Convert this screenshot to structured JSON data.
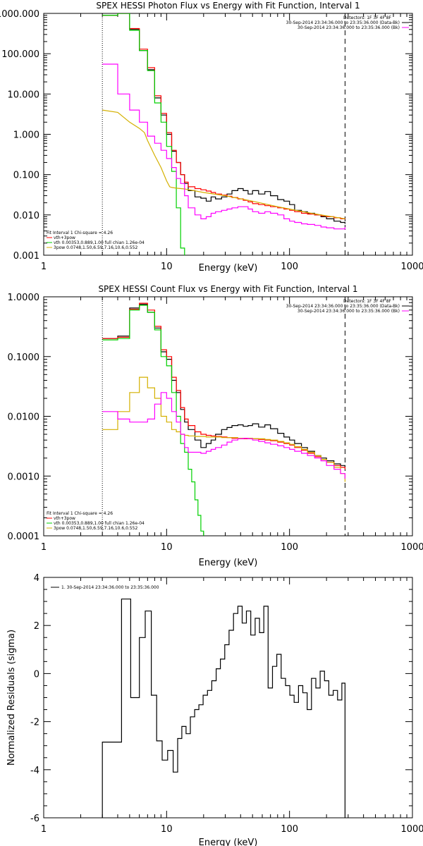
{
  "chart_data": [
    {
      "type": "line",
      "title": "SPEX HESSI Photon Flux vs Energy with Fit Function, Interval 1",
      "xlabel": "Energy (keV)",
      "ylabel": "",
      "xscale": "log",
      "yscale": "log",
      "xlim": [
        1,
        1000
      ],
      "ylim": [
        0.001,
        1000
      ],
      "xticks": [
        1,
        10,
        100,
        1000
      ],
      "xtick_labels": [
        "1",
        "10",
        "100",
        "1000"
      ],
      "yticks": [
        0.001,
        0.01,
        0.1,
        1,
        10,
        100,
        1000
      ],
      "ytick_labels": [
        "0.001",
        "0.010",
        "0.100",
        "1.000",
        "10.000",
        "100.000",
        "1000.000"
      ],
      "header_right": [
        "Detectors: 1F 3F 4F 8F",
        "30-Sep-2014 23:34:36.000 to 23:35:36.000 (Data-Bk)",
        "30-Sep-2014 23:34:36.000 to 23:35:36.000 (Bk)"
      ],
      "legend_text": [
        "Fit Interval 1   Chi-square = 4.26",
        "vth+3pow",
        "vth 0.00353,0.889,1.00  full chian 1.26e-04",
        "3pow 0.0748,1.50,6.59,7.16,10.6,0.552"
      ],
      "legend_position": "bottom-left",
      "vlines": [
        {
          "x": 3,
          "style": "dotted",
          "color": "#000000"
        },
        {
          "x": 283,
          "style": "dashed",
          "color": "#000000"
        }
      ],
      "series": [
        {
          "name": "30-Sep-2014 23:34:36.000 to 23:35:36.000 (Data-Bk)",
          "color": "#000000",
          "step": true,
          "x": [
            3,
            4,
            5,
            6,
            7,
            8,
            9,
            10,
            11,
            12,
            13,
            14,
            15,
            17,
            19,
            21,
            23,
            25,
            28,
            31,
            34,
            38,
            42,
            46,
            50,
            56,
            63,
            70,
            80,
            90,
            100,
            110,
            125,
            140,
            160,
            180,
            200,
            230,
            260,
            283
          ],
          "y": [
            900,
            1000,
            400,
            120,
            40,
            8,
            3,
            1,
            0.38,
            0.2,
            0.1,
            0.06,
            0.04,
            0.028,
            0.026,
            0.022,
            0.028,
            0.025,
            0.028,
            0.033,
            0.04,
            0.045,
            0.04,
            0.033,
            0.04,
            0.033,
            0.038,
            0.03,
            0.024,
            0.022,
            0.018,
            0.013,
            0.012,
            0.011,
            0.01,
            0.009,
            0.008,
            0.007,
            0.0065,
            0.006
          ]
        },
        {
          "name": "vth+3pow",
          "color": "#ff0000",
          "step": true,
          "x": [
            3,
            4,
            5,
            6,
            7,
            8,
            9,
            10,
            11,
            12,
            13,
            14,
            15,
            17,
            19,
            21,
            23,
            25,
            28,
            31,
            34,
            38,
            42,
            46,
            50,
            56,
            63,
            70,
            80,
            90,
            100,
            110,
            125,
            140,
            160,
            180,
            200,
            230,
            260,
            283
          ],
          "y": [
            900,
            1000,
            420,
            130,
            45,
            9,
            3.3,
            1.1,
            0.4,
            0.2,
            0.1,
            0.065,
            0.05,
            0.045,
            0.042,
            0.039,
            0.036,
            0.033,
            0.031,
            0.029,
            0.027,
            0.025,
            0.023,
            0.021,
            0.019,
            0.018,
            0.017,
            0.016,
            0.015,
            0.014,
            0.013,
            0.012,
            0.011,
            0.0105,
            0.01,
            0.0095,
            0.009,
            0.0085,
            0.008,
            0.0078
          ]
        },
        {
          "name": "vth 0.00353,0.889,1.00  full chian 1.26e-04",
          "color": "#00d000",
          "step": true,
          "x": [
            3,
            4,
            5,
            6,
            7,
            8,
            9,
            10,
            11,
            12,
            13,
            14
          ],
          "y": [
            900,
            1000,
            380,
            120,
            38,
            6,
            2,
            0.5,
            0.12,
            0.015,
            0.0015,
            0.001
          ]
        },
        {
          "name": "3pow 0.0748,1.50,6.59,7.16,10.6,0.552",
          "color": "#d4b000",
          "step": false,
          "x": [
            3,
            4,
            5,
            6,
            6.6,
            7,
            8,
            9,
            10,
            10.6,
            11,
            12,
            14,
            20,
            30,
            50,
            80,
            100,
            150,
            200,
            283
          ],
          "y": [
            4,
            3.5,
            2,
            1.4,
            1.1,
            0.7,
            0.3,
            0.15,
            0.07,
            0.05,
            0.048,
            0.046,
            0.044,
            0.036,
            0.03,
            0.022,
            0.016,
            0.014,
            0.011,
            0.0095,
            0.008
          ]
        },
        {
          "name": "30-Sep-2014 23:34:36.000 to 23:35:36.000 (Bk)",
          "color": "#ff00ff",
          "step": true,
          "x": [
            3,
            4,
            5,
            6,
            7,
            8,
            9,
            10,
            11,
            12,
            13,
            14,
            15,
            17,
            19,
            21,
            23,
            25,
            28,
            31,
            34,
            38,
            42,
            46,
            50,
            56,
            63,
            70,
            80,
            90,
            100,
            110,
            125,
            140,
            160,
            180,
            200,
            230,
            260,
            283
          ],
          "y": [
            55,
            10,
            4,
            2,
            0.9,
            0.6,
            0.4,
            0.25,
            0.15,
            0.08,
            0.06,
            0.03,
            0.015,
            0.01,
            0.008,
            0.009,
            0.011,
            0.012,
            0.013,
            0.014,
            0.015,
            0.016,
            0.016,
            0.014,
            0.012,
            0.011,
            0.012,
            0.011,
            0.01,
            0.008,
            0.007,
            0.0065,
            0.006,
            0.0058,
            0.0055,
            0.005,
            0.0048,
            0.0045,
            0.0045,
            0.005
          ]
        }
      ]
    },
    {
      "type": "line",
      "title": "SPEX HESSI Count Flux vs Energy with Fit Function, Interval 1",
      "xlabel": "Energy (keV)",
      "ylabel": "",
      "xscale": "log",
      "yscale": "log",
      "xlim": [
        1,
        1000
      ],
      "ylim": [
        0.0001,
        1
      ],
      "xticks": [
        1,
        10,
        100,
        1000
      ],
      "xtick_labels": [
        "1",
        "10",
        "100",
        "1000"
      ],
      "yticks": [
        0.0001,
        0.001,
        0.01,
        0.1,
        1
      ],
      "ytick_labels": [
        "0.0001",
        "0.0010",
        "0.0100",
        "0.1000",
        "1.0000"
      ],
      "header_right": [
        "Detectors: 1F 3F 4F 8F",
        "30-Sep-2014 23:34:36.000 to 23:35:36.000 (Data-Bk)",
        "30-Sep-2014 23:34:36.000 to 23:35:36.000 (Bk)"
      ],
      "legend_text": [
        "Fit Interval 1   Chi-square = 4.26",
        "vth+3pow",
        "vth 0.00353,0.889,1.00  full chian 1.26e-04",
        "3pow 0.0748,1.50,6.59,7.16,10.6,0.552"
      ],
      "legend_position": "bottom-left",
      "vlines": [
        {
          "x": 3,
          "style": "dotted",
          "color": "#000000"
        },
        {
          "x": 283,
          "style": "dashed",
          "color": "#000000"
        }
      ],
      "series": [
        {
          "name": "30-Sep-2014 23:34:36.000 to 23:35:36.000 (Data-Bk)",
          "color": "#000000",
          "step": true,
          "x": [
            3,
            4,
            5,
            6,
            7,
            8,
            9,
            10,
            11,
            12,
            13,
            14,
            15,
            17,
            19,
            21,
            23,
            25,
            28,
            31,
            34,
            38,
            42,
            46,
            50,
            56,
            63,
            70,
            80,
            90,
            100,
            110,
            125,
            140,
            160,
            180,
            200,
            230,
            260,
            283
          ],
          "y": [
            0.2,
            0.22,
            0.65,
            0.75,
            0.55,
            0.3,
            0.12,
            0.09,
            0.04,
            0.025,
            0.013,
            0.008,
            0.006,
            0.004,
            0.003,
            0.0035,
            0.004,
            0.005,
            0.006,
            0.0065,
            0.007,
            0.0072,
            0.0068,
            0.007,
            0.0075,
            0.0066,
            0.0072,
            0.0062,
            0.0052,
            0.0045,
            0.004,
            0.0035,
            0.003,
            0.0026,
            0.0022,
            0.002,
            0.0018,
            0.0016,
            0.0015,
            0.0014
          ]
        },
        {
          "name": "vth+3pow",
          "color": "#ff0000",
          "step": true,
          "x": [
            3,
            4,
            5,
            6,
            7,
            8,
            9,
            10,
            11,
            12,
            13,
            14,
            15,
            17,
            19,
            21,
            23,
            25,
            28,
            31,
            34,
            38,
            42,
            46,
            50,
            56,
            63,
            70,
            80,
            90,
            100,
            110,
            125,
            140,
            160,
            180,
            200,
            230,
            260,
            283
          ],
          "y": [
            0.2,
            0.21,
            0.62,
            0.78,
            0.6,
            0.32,
            0.13,
            0.1,
            0.045,
            0.027,
            0.014,
            0.009,
            0.007,
            0.0055,
            0.005,
            0.0048,
            0.0047,
            0.0046,
            0.0045,
            0.0044,
            0.0043,
            0.0043,
            0.0042,
            0.0042,
            0.0042,
            0.0041,
            0.004,
            0.0039,
            0.0037,
            0.0035,
            0.0033,
            0.003,
            0.0027,
            0.0024,
            0.0021,
            0.0019,
            0.0017,
            0.0015,
            0.0014,
            0.0013
          ]
        },
        {
          "name": "vth 0.00353,0.889,1.00  full chian 1.26e-04",
          "color": "#00d000",
          "step": true,
          "x": [
            3,
            4,
            5,
            6,
            7,
            8,
            9,
            10,
            11,
            12,
            13,
            14,
            15,
            16,
            17,
            18,
            19,
            20
          ],
          "y": [
            0.19,
            0.2,
            0.6,
            0.72,
            0.55,
            0.28,
            0.1,
            0.07,
            0.025,
            0.01,
            0.0035,
            0.0025,
            0.0013,
            0.0008,
            0.0004,
            0.00022,
            0.00012,
            0.0001
          ]
        },
        {
          "name": "3pow 0.0748,1.50,6.59,7.16,10.6,0.552",
          "color": "#d4b000",
          "step": true,
          "x": [
            3,
            4,
            5,
            6,
            7,
            8,
            9,
            10,
            11,
            12,
            13,
            14,
            15,
            17,
            19,
            21,
            23,
            25,
            28,
            31,
            34,
            38,
            42,
            46,
            50,
            56,
            63,
            70,
            80,
            90,
            100,
            110,
            125,
            140,
            160,
            180,
            200,
            230,
            260,
            283
          ],
          "y": [
            0.006,
            0.012,
            0.025,
            0.045,
            0.03,
            0.02,
            0.01,
            0.008,
            0.006,
            0.0055,
            0.005,
            0.0048,
            0.0047,
            0.0046,
            0.0046,
            0.0045,
            0.0045,
            0.0045,
            0.0044,
            0.0044,
            0.0044,
            0.0043,
            0.0043,
            0.0043,
            0.0042,
            0.0042,
            0.0041,
            0.004,
            0.0038,
            0.0036,
            0.0034,
            0.0031,
            0.0028,
            0.0025,
            0.0022,
            0.0019,
            0.0017,
            0.0014,
            0.0011,
            0.0008
          ]
        },
        {
          "name": "30-Sep-2014 23:34:36.000 to 23:35:36.000 (Bk)",
          "color": "#ff00ff",
          "step": true,
          "x": [
            3,
            4,
            5,
            6,
            7,
            8,
            9,
            10,
            11,
            12,
            13,
            14,
            15,
            17,
            19,
            21,
            23,
            25,
            28,
            31,
            34,
            38,
            42,
            46,
            50,
            56,
            63,
            70,
            80,
            90,
            100,
            110,
            125,
            140,
            160,
            180,
            200,
            230,
            260,
            283
          ],
          "y": [
            0.012,
            0.009,
            0.008,
            0.008,
            0.009,
            0.016,
            0.025,
            0.02,
            0.012,
            0.008,
            0.005,
            0.003,
            0.0025,
            0.0025,
            0.0024,
            0.0026,
            0.0028,
            0.003,
            0.0033,
            0.0037,
            0.004,
            0.0042,
            0.0043,
            0.0042,
            0.004,
            0.0038,
            0.0036,
            0.0034,
            0.0032,
            0.003,
            0.0028,
            0.0026,
            0.0024,
            0.0022,
            0.002,
            0.0018,
            0.0015,
            0.0013,
            0.0011,
            0.0009
          ]
        }
      ]
    },
    {
      "type": "line",
      "title": "",
      "xlabel": "Energy (keV)",
      "ylabel": "Normalized Residuals (sigma)",
      "xscale": "log",
      "yscale": "linear",
      "xlim": [
        1,
        1000
      ],
      "ylim": [
        -6,
        4
      ],
      "xticks": [
        1,
        10,
        100,
        1000
      ],
      "xtick_labels": [
        "1",
        "10",
        "100",
        "1000"
      ],
      "yticks": [
        -6,
        -4,
        -2,
        0,
        2,
        4
      ],
      "ytick_labels": [
        "-6",
        "-4",
        "-2",
        "0",
        "2",
        "4"
      ],
      "legend_text": [
        "1. 30-Sep-2014 23:34:36.000 to 23:35:36.000"
      ],
      "legend_position": "top-left",
      "series": [
        {
          "name": "1. 30-Sep-2014 23:34:36.000 to 23:35:36.000",
          "color": "#000000",
          "step": true,
          "x": [
            3,
            4.3,
            5.1,
            6,
            6.7,
            7.5,
            8.3,
            9.2,
            10.2,
            11.3,
            12.3,
            13.3,
            14.4,
            15.6,
            16.9,
            18.3,
            19.8,
            21.5,
            23.3,
            25.3,
            27.4,
            29.7,
            32.2,
            35,
            38,
            41.2,
            44.6,
            48.4,
            52.5,
            57,
            61.8,
            67,
            72.7,
            78.8,
            85.5,
            92.8,
            100.6,
            109,
            118.3,
            128.3,
            139.1,
            150.9,
            163.7,
            177.5,
            192.6,
            208.9,
            226.6,
            245.8,
            266.6,
            283
          ],
          "y": [
            -2.85,
            3.1,
            -1.0,
            1.5,
            2.6,
            -0.9,
            -2.8,
            -3.6,
            -3.2,
            -4.1,
            -2.7,
            -2.2,
            -2.5,
            -1.8,
            -1.5,
            -1.3,
            -0.9,
            -0.7,
            -0.3,
            0.2,
            0.6,
            1.2,
            1.8,
            2.5,
            2.8,
            2.1,
            2.6,
            1.6,
            2.3,
            1.7,
            2.8,
            -0.6,
            0.3,
            0.8,
            -0.2,
            -0.5,
            -0.9,
            -1.2,
            -0.5,
            -0.8,
            -1.5,
            -0.2,
            -0.6,
            0.1,
            -0.3,
            -0.9,
            -0.7,
            -1.1,
            -0.4,
            -0.4
          ]
        }
      ]
    }
  ]
}
